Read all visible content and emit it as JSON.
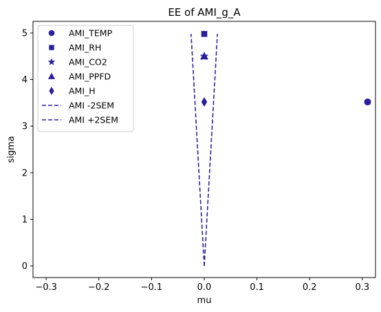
{
  "chart_data": {
    "type": "scatter",
    "title": "EE of AMI_g_A",
    "xlabel": "mu",
    "ylabel": "sigma",
    "xlim": [
      -0.325,
      0.325
    ],
    "ylim": [
      -0.25,
      5.25
    ],
    "xticks": [
      -0.3,
      -0.2,
      -0.1,
      0.0,
      0.1,
      0.2,
      0.3
    ],
    "xtick_labels": [
      "−0.3",
      "−0.2",
      "−0.1",
      "0.0",
      "0.1",
      "0.2",
      "0.3"
    ],
    "yticks": [
      0,
      1,
      2,
      3,
      4,
      5
    ],
    "ytick_labels": [
      "0",
      "1",
      "2",
      "3",
      "4",
      "5"
    ],
    "grid": false,
    "legend_position": "top-left",
    "color": "#2a1f9a",
    "points": [
      {
        "name": "AMI_TEMP",
        "marker": "circle",
        "x": 0.31,
        "y": 3.52
      },
      {
        "name": "AMI_RH",
        "marker": "square",
        "x": 0.0,
        "y": 4.98
      },
      {
        "name": "AMI_CO2",
        "marker": "star",
        "x": 0.0,
        "y": 4.5
      },
      {
        "name": "AMI_PPFD",
        "marker": "triangle",
        "x": 0.0,
        "y": 4.5
      },
      {
        "name": "AMI_H",
        "marker": "diamond",
        "x": 0.0,
        "y": 3.52
      }
    ],
    "lines": [
      {
        "name": "AMI -2SEM",
        "style": "dashed",
        "x": [
          0.0,
          -0.025
        ],
        "y": [
          0.0,
          4.98
        ]
      },
      {
        "name": "AMI +2SEM",
        "style": "dashed",
        "x": [
          0.0,
          0.025
        ],
        "y": [
          0.0,
          4.98
        ]
      }
    ]
  }
}
